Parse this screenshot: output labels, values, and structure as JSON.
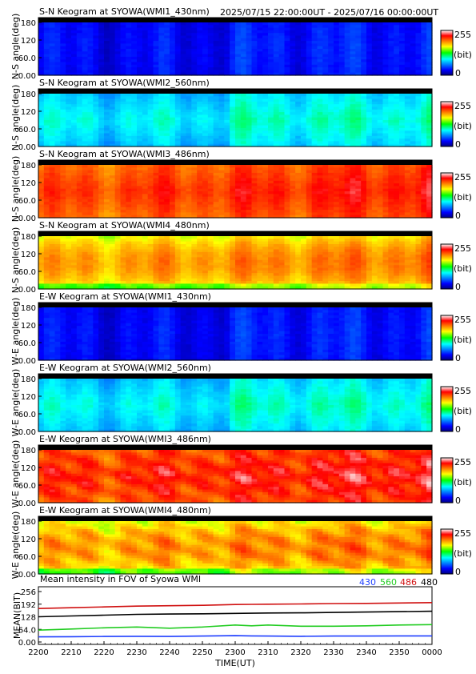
{
  "header": {
    "time_range": "2025/07/15 22:00:00UT - 2025/07/16 00:00:00UT"
  },
  "colorbar": {
    "max_label": "255",
    "unit_label": "(bit)",
    "min_label": "0"
  },
  "keograms": [
    {
      "title": "S-N Keogram at SYOWA(WMI1_430nm)",
      "ylabel": "N-S angle(deg)",
      "palette_level": 0.12,
      "style": "blue",
      "yticks": [
        "180",
        "120",
        "60.0",
        "0.00"
      ]
    },
    {
      "title": "S-N Keogram at SYOWA(WMI2_560nm)",
      "ylabel": "N-S angle(deg)",
      "palette_level": 0.36,
      "style": "green",
      "yticks": [
        "180",
        "120",
        "60.0",
        "0.00"
      ]
    },
    {
      "title": "S-N Keogram at SYOWA(WMI3_486nm)",
      "ylabel": "N-S angle(deg)",
      "palette_level": 0.82,
      "style": "orange",
      "yticks": [
        "180",
        "120",
        "60.0",
        "0.00"
      ]
    },
    {
      "title": "S-N Keogram at SYOWA(WMI4_480nm)",
      "ylabel": "N-S angle(deg)",
      "palette_level": 0.72,
      "style": "yellow",
      "yticks": [
        "180",
        "120",
        "60.0",
        "0.00"
      ]
    },
    {
      "title": "E-W Keogram at SYOWA(WMI1_430nm)",
      "ylabel": "W-E angle(deg)",
      "palette_level": 0.12,
      "style": "blue",
      "yticks": [
        "180",
        "120",
        "60.0",
        "0.00"
      ]
    },
    {
      "title": "E-W Keogram at SYOWA(WMI2_560nm)",
      "ylabel": "W-E angle(deg)",
      "palette_level": 0.36,
      "style": "green",
      "yticks": [
        "180",
        "120",
        "60.0",
        "0.00"
      ]
    },
    {
      "title": "E-W Keogram at SYOWA(WMI3_486nm)",
      "ylabel": "W-E angle(deg)",
      "palette_level": 0.84,
      "style": "orange-diag",
      "yticks": [
        "180",
        "120",
        "60.0",
        "0.00"
      ]
    },
    {
      "title": "E-W Keogram at SYOWA(WMI4_480nm)",
      "ylabel": "W-E angle(deg)",
      "palette_level": 0.72,
      "style": "yellow-diag",
      "yticks": [
        "180",
        "120",
        "60.0",
        "0.00"
      ]
    }
  ],
  "chart_data": {
    "type": "line",
    "title": "Mean intensity in FOV of Syowa WMI",
    "xlabel": "TIME(UT)",
    "ylabel": "MEAN(BIT)",
    "ylim": [
      0,
      256
    ],
    "yticks": [
      "256",
      "192",
      "128",
      "64.0",
      "0.00"
    ],
    "xticks": [
      "2200",
      "2210",
      "2220",
      "2230",
      "2240",
      "2250",
      "2300",
      "2310",
      "2320",
      "2330",
      "2340",
      "2350",
      "0000"
    ],
    "legend": [
      "430",
      "560",
      "486",
      "480"
    ],
    "x": [
      "2200",
      "2210",
      "2220",
      "2230",
      "2240",
      "2250",
      "2300",
      "2305",
      "2310",
      "2320",
      "2330",
      "2340",
      "2350",
      "0000"
    ],
    "series": [
      {
        "name": "430",
        "color": "#1f3fff",
        "values": [
          26,
          27,
          28,
          29,
          28,
          30,
          32,
          31,
          30,
          29,
          30,
          30,
          31,
          31
        ]
      },
      {
        "name": "560",
        "color": "#22cc22",
        "values": [
          60,
          66,
          72,
          76,
          70,
          76,
          86,
          82,
          86,
          80,
          80,
          82,
          86,
          88
        ]
      },
      {
        "name": "486",
        "color": "#d01010",
        "values": [
          170,
          174,
          178,
          182,
          184,
          186,
          190,
          191,
          192,
          193,
          195,
          196,
          198,
          200
        ]
      },
      {
        "name": "480",
        "color": "#000000",
        "values": [
          128,
          132,
          136,
          140,
          142,
          143,
          145,
          146,
          147,
          148,
          150,
          152,
          154,
          156
        ]
      }
    ]
  }
}
